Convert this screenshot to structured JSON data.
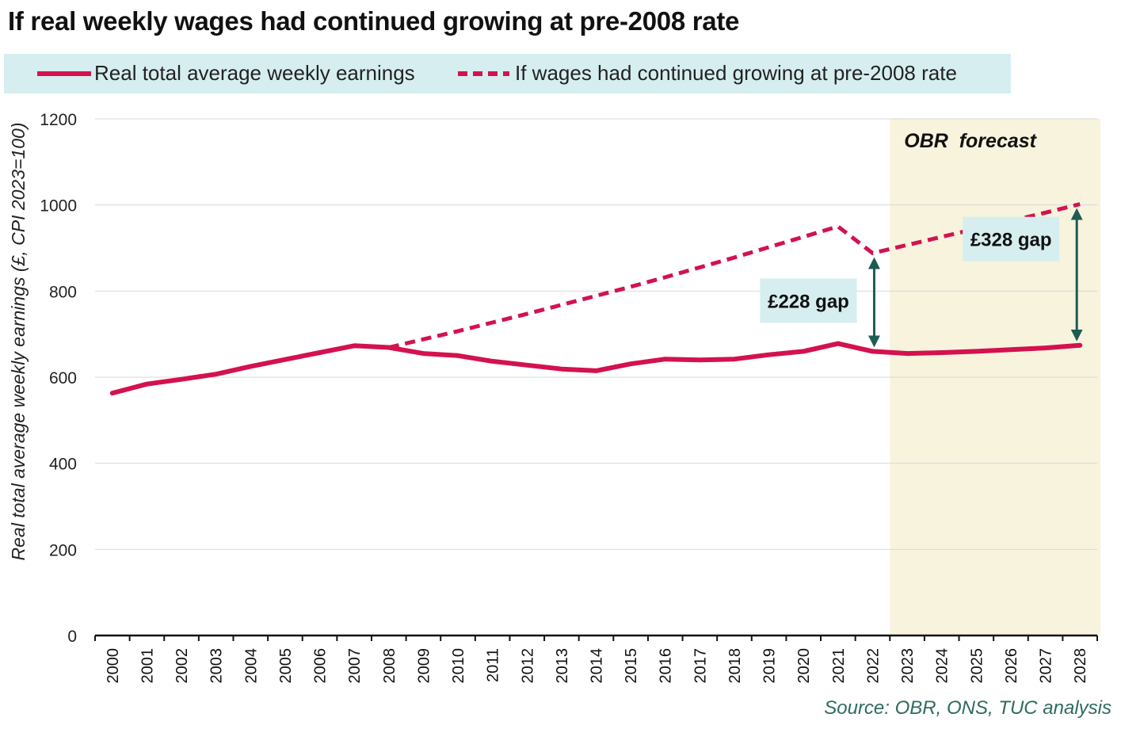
{
  "title": "If real weekly wages had continued growing at pre-2008 rate",
  "source": "Source: OBR, ONS, TUC analysis",
  "colors": {
    "series": "#d3124f",
    "legend_bg": "#d6eef0",
    "forecast_bg": "#f7f3dd",
    "annotation_bg": "#d6eef0",
    "arrow": "#1e5b52",
    "grid": "#d9d9d9",
    "axis": "#111111"
  },
  "chart_data": {
    "type": "line",
    "title": "If real weekly wages had continued growing at pre-2008 rate",
    "xlabel": "",
    "ylabel": "Real total average weekly earnings (£, CPI 2023=100)",
    "ylim": [
      0,
      1200
    ],
    "yticks": [
      0,
      200,
      400,
      600,
      800,
      1000,
      1200
    ],
    "grid": true,
    "legend_position": "top",
    "x": [
      "2000",
      "2001",
      "2002",
      "2003",
      "2004",
      "2005",
      "2006",
      "2007",
      "2008",
      "2009",
      "2010",
      "2011",
      "2012",
      "2013",
      "2014",
      "2015",
      "2016",
      "2017",
      "2018",
      "2019",
      "2020",
      "2021",
      "2022",
      "2023",
      "2024",
      "2025",
      "2026",
      "2027",
      "2028"
    ],
    "series": [
      {
        "name": "Real total average weekly earnings",
        "style": "solid",
        "values": [
          563,
          584,
          595,
          607,
          625,
          641,
          657,
          673,
          669,
          655,
          650,
          637,
          628,
          619,
          615,
          631,
          642,
          640,
          642,
          652,
          660,
          678,
          660,
          655,
          657,
          660,
          664,
          668,
          674
        ]
      },
      {
        "name": "If wages had continued growing at pre-2008 rate",
        "style": "dashed",
        "values": [
          null,
          null,
          null,
          null,
          null,
          null,
          null,
          null,
          669,
          688,
          707,
          727,
          747,
          768,
          789,
          810,
          832,
          855,
          878,
          902,
          926,
          950,
          888,
          907,
          926,
          945,
          963,
          982,
          1002
        ]
      }
    ],
    "shaded_region": {
      "label": "OBR  forecast",
      "from": "2023",
      "to": "2028"
    },
    "annotations": [
      {
        "label": "£228 gap",
        "x": "2022",
        "from": 660,
        "to": 888
      },
      {
        "label": "£328 gap",
        "x": "2028",
        "from": 674,
        "to": 1002
      }
    ]
  }
}
